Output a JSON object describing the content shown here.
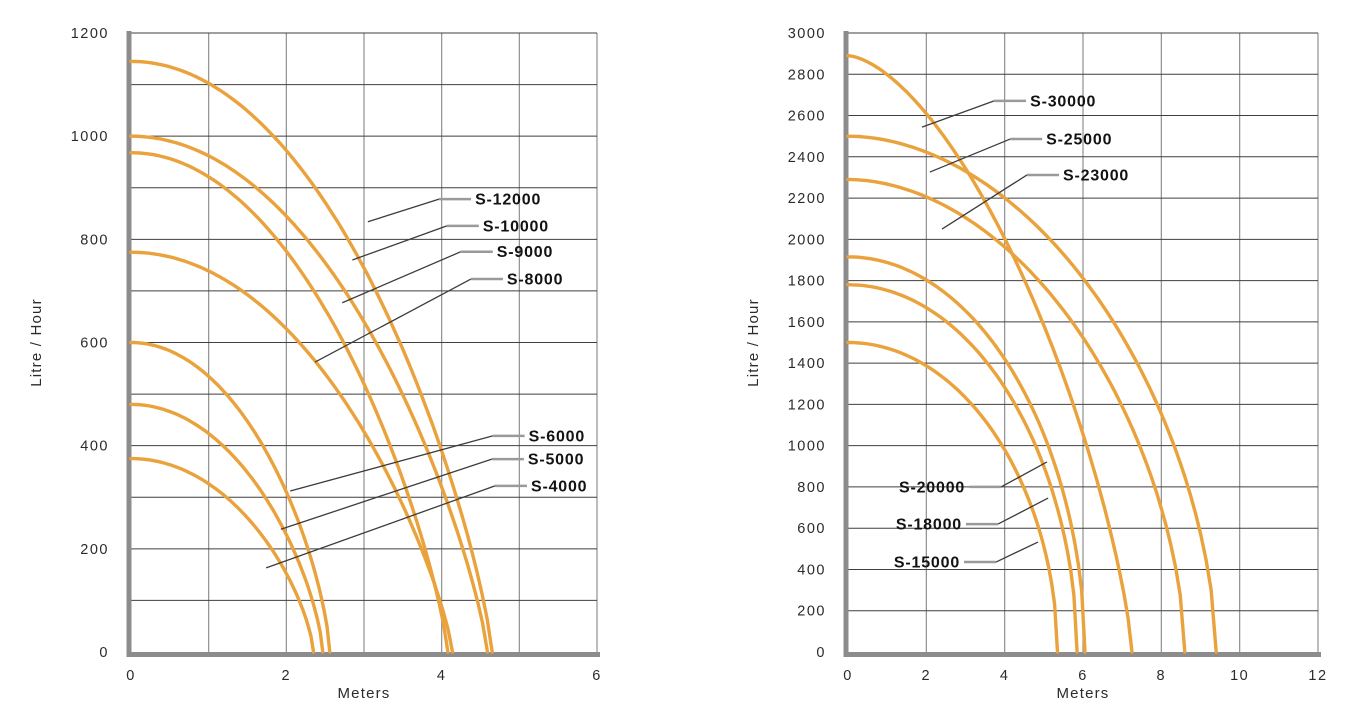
{
  "figure": {
    "background": "#ffffff",
    "colors": {
      "curve": "#E9A23C",
      "grid_horizontal": "#3f3f3f",
      "grid_vertical": "#8f8f8f",
      "spine": "#8c8c8c",
      "tick_text": "#2b2b2b",
      "series_label_text": "#121212",
      "leader_line": "#3c3c3c",
      "leader_elbow": "#9a9a9a"
    }
  },
  "chart_data": [
    {
      "type": "line",
      "title": "",
      "xlabel": "Meters",
      "ylabel": "Litre / Hour",
      "xlim": [
        0,
        6
      ],
      "ylim": [
        0,
        1200
      ],
      "x_ticks": [
        0,
        2,
        4,
        6
      ],
      "y_ticks": [
        0,
        200,
        400,
        600,
        800,
        1000,
        1200
      ],
      "x_grid_step": 1,
      "y_grid_step": 100,
      "grid": true,
      "legend_position": "inline-leader-labels",
      "series": [
        {
          "name": "S-12000",
          "max_flow_lph": 1145,
          "max_head_m": 4.65,
          "shape": [
            2,
            0.8
          ],
          "points": [
            [
              0,
              1145
            ],
            [
              1,
              1102
            ],
            [
              2,
              972
            ],
            [
              3,
              745
            ],
            [
              4,
              389
            ],
            [
              4.65,
              0
            ]
          ],
          "label_at": [
            4.43,
            878
          ],
          "anchor": "start",
          "point_at": [
            3.05,
            834
          ]
        },
        {
          "name": "S-10000",
          "max_flow_lph": 1000,
          "max_head_m": 4.59,
          "shape": [
            2,
            0.8
          ],
          "points": [
            [
              0,
              1000
            ],
            [
              1,
              962
            ],
            [
              2,
              844
            ],
            [
              3,
              639
            ],
            [
              4,
              316
            ],
            [
              4.59,
              0
            ]
          ],
          "label_at": [
            4.53,
            826
          ],
          "anchor": "start",
          "point_at": [
            2.85,
            760
          ]
        },
        {
          "name": "S-9000",
          "max_flow_lph": 968,
          "max_head_m": 4.08,
          "shape": [
            2,
            0.8
          ],
          "points": [
            [
              0,
              968
            ],
            [
              1,
              921
            ],
            [
              2,
              777
            ],
            [
              3,
              519
            ],
            [
              4,
              72
            ],
            [
              4.08,
              0
            ]
          ],
          "label_at": [
            4.71,
            776
          ],
          "anchor": "start",
          "point_at": [
            2.72,
            677
          ]
        },
        {
          "name": "S-8000",
          "max_flow_lph": 775,
          "max_head_m": 4.14,
          "shape": [
            2,
            0.8
          ],
          "points": [
            [
              0,
              775
            ],
            [
              1,
              739
            ],
            [
              2,
              627
            ],
            [
              3,
              427
            ],
            [
              4,
              89
            ],
            [
              4.14,
              0
            ]
          ],
          "label_at": [
            4.84,
            723
          ],
          "anchor": "start",
          "point_at": [
            2.37,
            562
          ]
        },
        {
          "name": "S-6000",
          "max_flow_lph": 600,
          "max_head_m": 2.56,
          "shape": [
            2,
            0.7
          ],
          "points": [
            [
              0,
              600
            ],
            [
              0.5,
              584
            ],
            [
              1,
              534
            ],
            [
              1.5,
              447
            ],
            [
              2,
              310
            ],
            [
              2.56,
              0
            ]
          ],
          "label_at": [
            5.12,
            419
          ],
          "anchor": "start",
          "point_at": [
            2.05,
            312
          ]
        },
        {
          "name": "S-5000",
          "max_flow_lph": 480,
          "max_head_m": 2.47,
          "shape": [
            2,
            0.7
          ],
          "points": [
            [
              0,
              480
            ],
            [
              0.5,
              466
            ],
            [
              1,
              423
            ],
            [
              1.5,
              348
            ],
            [
              2,
              228
            ],
            [
              2.47,
              0
            ]
          ],
          "label_at": [
            5.11,
            374
          ],
          "anchor": "start",
          "point_at": [
            1.93,
            238
          ]
        },
        {
          "name": "S-4000",
          "max_flow_lph": 375,
          "max_head_m": 2.35,
          "shape": [
            2,
            0.7
          ],
          "points": [
            [
              0,
              375
            ],
            [
              0.5,
              363
            ],
            [
              1,
              326
            ],
            [
              1.5,
              260
            ],
            [
              2,
              152
            ],
            [
              2.35,
              0
            ]
          ],
          "label_at": [
            5.15,
            322
          ],
          "anchor": "start",
          "point_at": [
            1.74,
            163
          ]
        }
      ]
    },
    {
      "type": "line",
      "title": "",
      "xlabel": "Meters",
      "ylabel": "Litre / Hour",
      "xlim": [
        0,
        12
      ],
      "ylim": [
        0,
        3000
      ],
      "x_ticks": [
        0,
        2,
        4,
        6,
        8,
        10,
        12
      ],
      "y_ticks": [
        0,
        200,
        400,
        600,
        800,
        1000,
        1200,
        1400,
        1600,
        1800,
        2000,
        2200,
        2400,
        2600,
        2800,
        3000
      ],
      "x_grid_step": 2,
      "y_grid_step": 200,
      "grid": true,
      "legend_position": "inline-leader-labels",
      "series": [
        {
          "name": "S-30000",
          "max_flow_lph": 2890,
          "max_head_m": 7.25,
          "shape": [
            1.6,
            0.75
          ],
          "points": [
            [
              0,
              2890
            ],
            [
              1,
              2798
            ],
            [
              2,
              2610
            ],
            [
              3,
              2344
            ],
            [
              4,
              2006
            ],
            [
              5,
              1584
            ],
            [
              6,
              1058
            ],
            [
              7,
              328
            ],
            [
              7.25,
              0
            ]
          ],
          "label_at": [
            4.65,
            2671
          ],
          "anchor": "start",
          "point_at": [
            1.89,
            2544
          ]
        },
        {
          "name": "S-25000",
          "max_flow_lph": 2500,
          "max_head_m": 9.4,
          "shape": [
            1.9,
            0.58
          ],
          "points": [
            [
              0,
              2500
            ],
            [
              2,
              2423
            ],
            [
              4,
              2202
            ],
            [
              6,
              1812
            ],
            [
              8,
              1155
            ],
            [
              9.4,
              0
            ]
          ],
          "label_at": [
            5.06,
            2486
          ],
          "anchor": "start",
          "point_at": [
            2.09,
            2326
          ]
        },
        {
          "name": "S-23000",
          "max_flow_lph": 2290,
          "max_head_m": 8.6,
          "shape": [
            1.9,
            0.58
          ],
          "points": [
            [
              0,
              2290
            ],
            [
              2,
              2205
            ],
            [
              4,
              1962
            ],
            [
              6,
              1523
            ],
            [
              8,
              696
            ],
            [
              8.6,
              0
            ]
          ],
          "label_at": [
            5.49,
            2312
          ],
          "anchor": "start",
          "point_at": [
            2.4,
            2050
          ]
        },
        {
          "name": "S-20000",
          "max_flow_lph": 1915,
          "max_head_m": 6.05,
          "shape": [
            2,
            0.52
          ],
          "points": [
            [
              0,
              1915
            ],
            [
              1,
              1888
            ],
            [
              2,
              1803
            ],
            [
              3,
              1653
            ],
            [
              4,
              1421
            ],
            [
              5,
              1054
            ],
            [
              6,
              227
            ],
            [
              6.05,
              0
            ]
          ],
          "label_at": [
            2.99,
            800
          ],
          "anchor": "end",
          "point_at": [
            5.08,
            921
          ]
        },
        {
          "name": "S-18000",
          "max_flow_lph": 1780,
          "max_head_m": 5.85,
          "shape": [
            2,
            0.52
          ],
          "points": [
            [
              0,
              1780
            ],
            [
              1,
              1753
            ],
            [
              2,
              1669
            ],
            [
              3,
              1518
            ],
            [
              4,
              1283
            ],
            [
              5,
              901
            ],
            [
              5.85,
              0
            ]
          ],
          "label_at": [
            2.91,
            620
          ],
          "anchor": "end",
          "point_at": [
            5.11,
            746
          ]
        },
        {
          "name": "S-15000",
          "max_flow_lph": 1500,
          "max_head_m": 5.35,
          "shape": [
            2,
            0.52
          ],
          "points": [
            [
              0,
              1500
            ],
            [
              1,
              1473
            ],
            [
              2,
              1387
            ],
            [
              3,
              1232
            ],
            [
              4,
              980
            ],
            [
              5,
              512
            ],
            [
              5.35,
              0
            ]
          ],
          "label_at": [
            2.86,
            436
          ],
          "anchor": "end",
          "point_at": [
            4.85,
            533
          ]
        }
      ]
    }
  ]
}
